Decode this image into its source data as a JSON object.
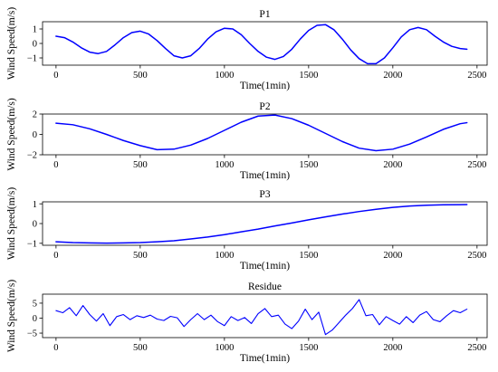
{
  "chart_data": [
    {
      "type": "line",
      "title": "P1",
      "xlabel": "Time(1min)",
      "ylabel": "Wind Speed(m/s)",
      "xlim": [
        -80,
        2560
      ],
      "ylim": [
        -1.5,
        1.5
      ],
      "xticks": [
        0,
        500,
        1000,
        1500,
        2000,
        2500
      ],
      "yticks": [
        -1,
        0,
        1
      ],
      "color": "#0000ff",
      "series": [
        {
          "x": [
            0,
            50,
            100,
            150,
            200,
            250,
            300,
            350,
            400,
            450,
            500,
            550,
            600,
            650,
            700,
            750,
            800,
            850,
            900,
            950,
            1000,
            1050,
            1100,
            1150,
            1200,
            1250,
            1300,
            1350,
            1400,
            1450,
            1500,
            1550,
            1600,
            1650,
            1700,
            1750,
            1800,
            1850,
            1900,
            1950,
            2000,
            2050,
            2100,
            2150,
            2200,
            2250,
            2300,
            2350,
            2400,
            2440
          ],
          "values": [
            0.5,
            0.4,
            0.1,
            -0.3,
            -0.6,
            -0.7,
            -0.55,
            -0.1,
            0.4,
            0.75,
            0.85,
            0.65,
            0.2,
            -0.35,
            -0.85,
            -1.0,
            -0.85,
            -0.35,
            0.3,
            0.8,
            1.05,
            1.0,
            0.6,
            0.0,
            -0.55,
            -0.95,
            -1.1,
            -0.9,
            -0.4,
            0.3,
            0.9,
            1.25,
            1.3,
            0.95,
            0.3,
            -0.45,
            -1.05,
            -1.4,
            -1.4,
            -1.0,
            -0.3,
            0.45,
            0.95,
            1.1,
            0.95,
            0.5,
            0.1,
            -0.2,
            -0.35,
            -0.4
          ]
        }
      ]
    },
    {
      "type": "line",
      "title": "P2",
      "xlabel": "Time(1min)",
      "ylabel": "Wind Speed(m/s)",
      "xlim": [
        -80,
        2560
      ],
      "ylim": [
        -2,
        2
      ],
      "xticks": [
        0,
        500,
        1000,
        1500,
        2000,
        2500
      ],
      "yticks": [
        -2,
        0,
        2
      ],
      "color": "#0000ff",
      "series": [
        {
          "x": [
            0,
            100,
            200,
            300,
            400,
            500,
            600,
            700,
            800,
            900,
            1000,
            1100,
            1200,
            1300,
            1400,
            1500,
            1600,
            1700,
            1800,
            1900,
            2000,
            2100,
            2200,
            2300,
            2400,
            2440
          ],
          "values": [
            1.1,
            0.95,
            0.55,
            0.0,
            -0.6,
            -1.1,
            -1.5,
            -1.45,
            -1.05,
            -0.4,
            0.4,
            1.2,
            1.8,
            1.9,
            1.55,
            0.9,
            0.1,
            -0.7,
            -1.35,
            -1.6,
            -1.45,
            -0.95,
            -0.25,
            0.5,
            1.05,
            1.15
          ]
        }
      ]
    },
    {
      "type": "line",
      "title": "P3",
      "xlabel": "Time(1min)",
      "ylabel": "Wind Speed(m/s)",
      "xlim": [
        -80,
        2560
      ],
      "ylim": [
        -1.1,
        1.1
      ],
      "xticks": [
        0,
        500,
        1000,
        1500,
        2000,
        2500
      ],
      "yticks": [
        -1,
        0,
        1
      ],
      "color": "#0000ff",
      "series": [
        {
          "x": [
            0,
            100,
            200,
            300,
            400,
            500,
            600,
            700,
            800,
            900,
            1000,
            1100,
            1200,
            1300,
            1400,
            1500,
            1600,
            1700,
            1800,
            1900,
            2000,
            2100,
            2200,
            2300,
            2440
          ],
          "values": [
            -0.92,
            -0.96,
            -0.98,
            -0.99,
            -0.98,
            -0.96,
            -0.92,
            -0.87,
            -0.78,
            -0.68,
            -0.56,
            -0.42,
            -0.28,
            -0.12,
            0.03,
            0.19,
            0.34,
            0.48,
            0.61,
            0.72,
            0.82,
            0.89,
            0.93,
            0.95,
            0.96
          ]
        }
      ]
    },
    {
      "type": "line",
      "title": "Residue",
      "xlabel": "Time(1min)",
      "ylabel": "Wind Speed(m/s)",
      "xlim": [
        -80,
        2560
      ],
      "ylim": [
        -6.5,
        8
      ],
      "xticks": [
        0,
        500,
        1000,
        1500,
        2000,
        2500
      ],
      "yticks": [
        -5,
        0,
        5
      ],
      "color": "#0000ff",
      "series": [
        {
          "x": [
            0,
            40,
            80,
            120,
            160,
            200,
            240,
            280,
            320,
            360,
            400,
            440,
            480,
            520,
            560,
            600,
            640,
            680,
            720,
            760,
            800,
            840,
            880,
            920,
            960,
            1000,
            1040,
            1080,
            1120,
            1160,
            1200,
            1240,
            1280,
            1320,
            1360,
            1400,
            1440,
            1480,
            1520,
            1560,
            1600,
            1640,
            1680,
            1720,
            1760,
            1800,
            1840,
            1880,
            1920,
            1960,
            2000,
            2040,
            2080,
            2120,
            2160,
            2200,
            2240,
            2280,
            2320,
            2360,
            2400,
            2440
          ],
          "values": [
            2.5,
            1.8,
            3.5,
            0.8,
            4.2,
            1.2,
            -1.0,
            1.5,
            -2.5,
            0.5,
            1.2,
            -0.5,
            0.8,
            0.2,
            1.0,
            -0.3,
            -0.8,
            0.6,
            0.1,
            -2.8,
            -0.5,
            1.5,
            -0.5,
            1.0,
            -1.2,
            -2.5,
            0.5,
            -0.8,
            0.2,
            -1.8,
            1.5,
            3.2,
            0.5,
            1.0,
            -2.0,
            -3.5,
            -1.0,
            3.0,
            -0.5,
            2.0,
            -5.5,
            -4.0,
            -1.5,
            1.0,
            3.2,
            6.2,
            0.8,
            1.2,
            -2.2,
            0.5,
            -0.8,
            -2.0,
            0.5,
            -1.5,
            1.0,
            2.2,
            -0.5,
            -1.2,
            0.8,
            2.5,
            1.8,
            3.0
          ]
        }
      ]
    }
  ]
}
